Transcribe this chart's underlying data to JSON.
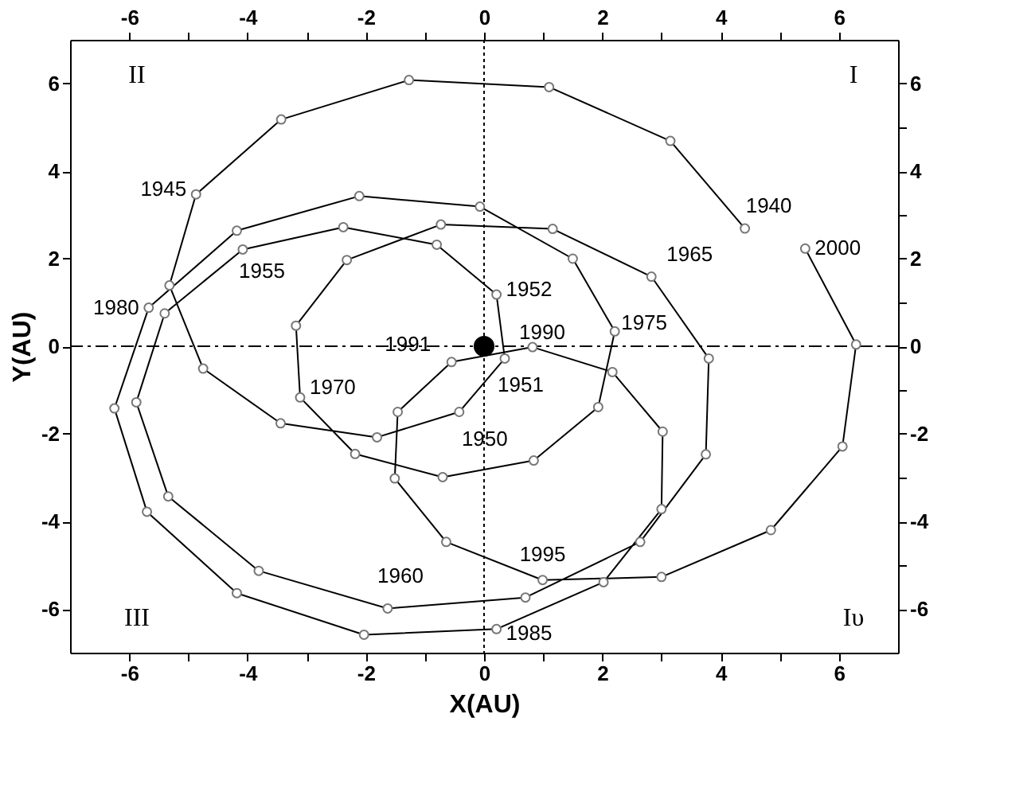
{
  "chart_data": {
    "type": "line",
    "xlabel": "X(AU)",
    "ylabel": "Y(AU)",
    "series": [
      {
        "color": "#000000",
        "marker": "circle",
        "x": [
          4.41,
          3.15,
          1.1,
          -1.27,
          -3.43,
          -4.87,
          -5.32,
          -4.75,
          -3.44,
          -1.81,
          -0.42,
          0.35,
          0.21,
          -0.8,
          -2.38,
          -4.08,
          -5.4,
          -5.88,
          -5.34,
          -3.81,
          -1.63,
          0.7,
          2.64,
          3.75,
          3.8,
          2.83,
          1.16,
          -0.73,
          -2.32,
          -3.18,
          -3.11,
          -2.18,
          -0.7,
          0.84,
          1.93,
          2.21,
          1.5,
          -0.07,
          -2.11,
          -4.18,
          -5.67,
          -6.25,
          -5.7,
          -4.18,
          -2.03,
          0.21,
          2.02,
          3.0,
          3.02,
          2.17,
          0.82,
          -0.55,
          -1.46,
          -1.51,
          -0.64,
          0.99,
          3.0,
          4.85,
          6.06,
          6.29,
          5.43
        ],
        "values": [
          2.69,
          4.69,
          5.92,
          6.08,
          5.18,
          3.47,
          1.39,
          -0.51,
          -1.76,
          -2.08,
          -1.5,
          -0.28,
          1.18,
          2.32,
          2.72,
          2.21,
          0.75,
          -1.28,
          -3.43,
          -5.13,
          -5.99,
          -5.74,
          -4.47,
          -2.47,
          -0.28,
          1.59,
          2.68,
          2.78,
          1.97,
          0.47,
          -1.17,
          -2.46,
          -2.99,
          -2.61,
          -1.39,
          0.34,
          2.0,
          3.19,
          3.43,
          2.64,
          0.88,
          -1.42,
          -3.78,
          -5.64,
          -6.59,
          -6.46,
          -5.39,
          -3.72,
          -1.95,
          -0.59,
          -0.02,
          -0.36,
          -1.5,
          -3.02,
          -4.47,
          -5.34,
          -5.27,
          -4.2,
          -2.29,
          0.04,
          2.23
        ]
      },
      {
        "type": "scatter",
        "color": "#000000",
        "marker": "circle",
        "x": [
          0
        ],
        "values": [
          0
        ]
      }
    ],
    "xlim": [
      -7,
      7
    ],
    "ylim": [
      -7,
      7
    ],
    "x2lim": [
      -7,
      7
    ],
    "y2lim": [
      -7,
      7
    ],
    "xticks": [
      -6,
      {
        "value": -5,
        "label": null
      },
      -4,
      {
        "value": -3,
        "label": null
      },
      -2,
      {
        "value": -1,
        "label": null
      },
      0,
      {
        "value": 1,
        "label": null
      },
      2,
      {
        "value": 3,
        "label": null
      },
      4,
      {
        "value": 5,
        "label": null
      },
      6
    ],
    "x2ticks": [
      -6,
      {
        "value": -5,
        "label": null
      },
      -4,
      {
        "value": -3,
        "label": null
      },
      -2,
      {
        "value": -1,
        "label": null
      },
      0,
      {
        "value": 1,
        "label": null
      },
      2,
      {
        "value": 3,
        "label": null
      },
      4,
      {
        "value": 5,
        "label": null
      },
      6
    ],
    "yticks": [
      -6,
      {
        "value": -5,
        "label": null
      },
      -4,
      {
        "value": -3,
        "label": null
      },
      -2,
      {
        "value": -1,
        "label": null
      },
      0,
      {
        "value": 1,
        "label": null
      },
      2,
      {
        "value": 3,
        "label": null
      },
      4,
      {
        "value": 5,
        "label": null
      },
      6
    ],
    "y2ticks": [
      -6,
      {
        "value": -5,
        "label": null
      },
      -4,
      {
        "value": -3,
        "label": null
      },
      -2,
      {
        "value": -1,
        "label": null
      },
      0,
      {
        "value": 1,
        "label": null
      },
      2,
      {
        "value": 3,
        "label": null
      },
      4,
      {
        "value": 5,
        "label": null
      },
      6
    ],
    "ref_lines": [
      {
        "axis": "x",
        "value": 0,
        "line_style": "dotted",
        "color": "#000000"
      },
      {
        "axis": "y",
        "value": 0,
        "line_style": "dashed",
        "color": "#000000"
      }
    ],
    "annotations": [
      {
        "text": "1940",
        "x": 4.41,
        "y": 2.69
      },
      {
        "text": "1945",
        "x": -4.87,
        "y": 3.47
      },
      {
        "text": "1950",
        "x": -0.42,
        "y": -1.5
      },
      {
        "text": "1951",
        "x": 0.35,
        "y": -0.28
      },
      {
        "text": "1952",
        "x": 0.21,
        "y": 1.18
      },
      {
        "text": "1955",
        "x": -4.08,
        "y": 2.21
      },
      {
        "text": "1960",
        "x": -1.63,
        "y": -5.99
      },
      {
        "text": "1965",
        "x": 2.83,
        "y": 1.59
      },
      {
        "text": "1970",
        "x": -3.11,
        "y": -1.17
      },
      {
        "text": "1975",
        "x": 2.21,
        "y": 0.34
      },
      {
        "text": "1980",
        "x": -5.67,
        "y": 0.88
      },
      {
        "text": "1985",
        "x": 0.21,
        "y": -6.46
      },
      {
        "text": "1990",
        "x": 0.82,
        "y": -0.02
      },
      {
        "text": "1991",
        "x": -0.55,
        "y": -0.36
      },
      {
        "text": "1995",
        "x": 0.99,
        "y": -5.34
      },
      {
        "text": "2000",
        "x": 5.43,
        "y": 2.23
      },
      "I",
      "II",
      "III",
      "Iυ"
    ],
    "grid": false
  }
}
